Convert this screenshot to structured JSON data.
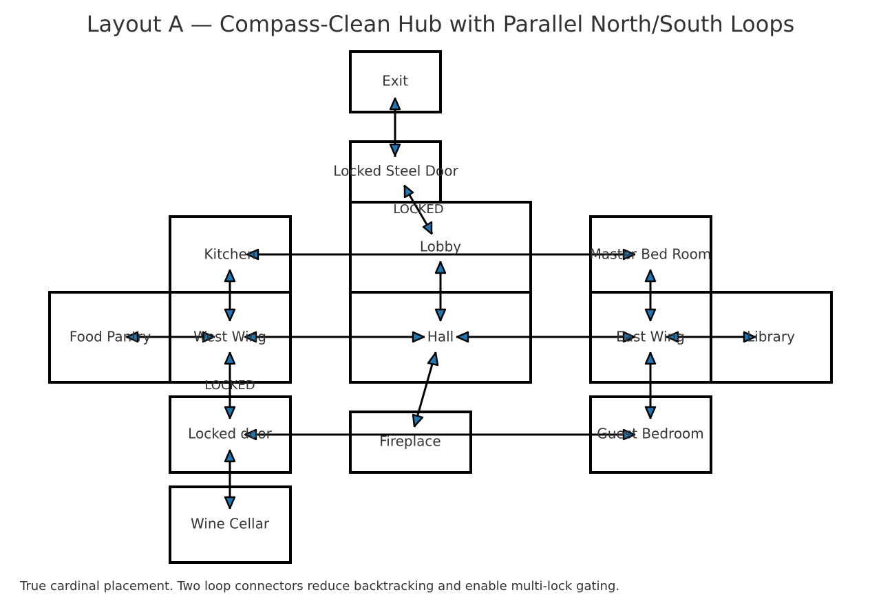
{
  "title": "Layout A — Compass-Clean Hub with Parallel North/South Loops",
  "caption": "True cardinal placement. Two loop connectors reduce backtracking and enable multi-lock gating.",
  "colors": {
    "box_stroke": "#000000",
    "connector": "#000000",
    "arrowhead_fill": "#1f77b4",
    "text": "#333333"
  },
  "rooms": {
    "exit": "Exit",
    "locked_steel_door": "Locked Steel Door",
    "lobby": "Lobby",
    "kitchen": "Kitchen",
    "master_bed_room": "Master Bed Room",
    "food_pantry": "Food Pantry",
    "west_wing": "West Wing",
    "hall": "Hall",
    "east_wing": "East Wing",
    "library": "Library",
    "locked_door": "Locked door",
    "fireplace": "Fireplace",
    "guest_bedroom": "Guest Bedroom",
    "wine_cellar": "Wine Cellar"
  },
  "lock_labels": {
    "steel_door_to_lobby": "LOCKED",
    "west_wing_to_locked_door": "LOCKED"
  },
  "connections": [
    {
      "from": "exit",
      "to": "locked_steel_door"
    },
    {
      "from": "locked_steel_door",
      "to": "lobby",
      "locked": true
    },
    {
      "from": "lobby",
      "to": "hall"
    },
    {
      "from": "kitchen",
      "to": "master_bed_room"
    },
    {
      "from": "kitchen",
      "to": "west_wing"
    },
    {
      "from": "master_bed_room",
      "to": "east_wing"
    },
    {
      "from": "west_wing",
      "to": "food_pantry"
    },
    {
      "from": "hall",
      "to": "west_wing"
    },
    {
      "from": "hall",
      "to": "east_wing"
    },
    {
      "from": "east_wing",
      "to": "library"
    },
    {
      "from": "hall",
      "to": "fireplace"
    },
    {
      "from": "west_wing",
      "to": "locked_door",
      "locked": true
    },
    {
      "from": "east_wing",
      "to": "guest_bedroom"
    },
    {
      "from": "locked_door",
      "to": "guest_bedroom"
    },
    {
      "from": "locked_door",
      "to": "wine_cellar"
    }
  ]
}
